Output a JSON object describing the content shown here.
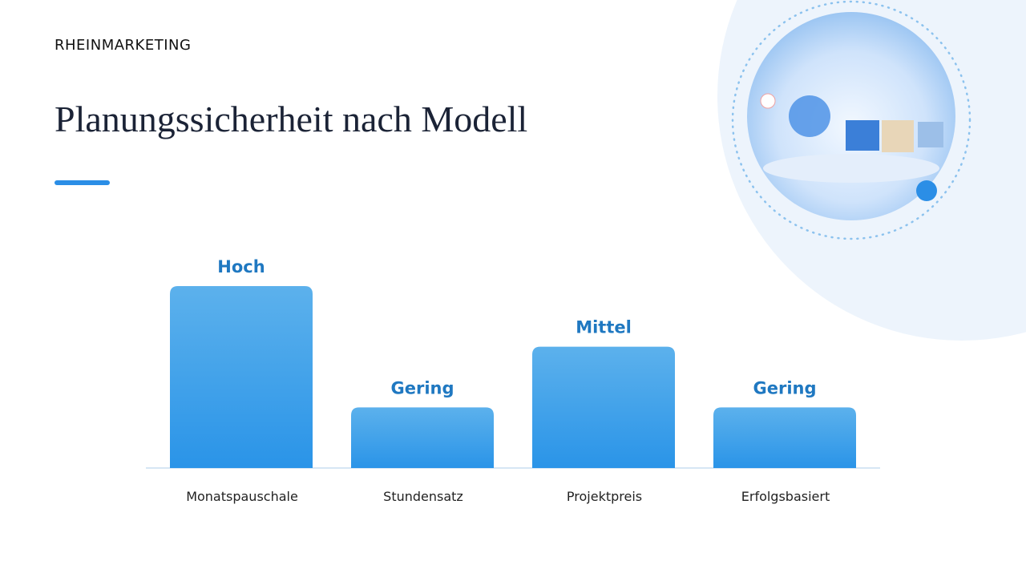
{
  "brand": "RHEINMARKETING",
  "chart_data": {
    "type": "bar",
    "title": "Planungssicherheit nach Modell",
    "categories": [
      "Monatspauschale",
      "Stundensatz",
      "Projektpreis",
      "Erfolgsbasiert"
    ],
    "values": [
      3,
      1,
      2,
      1
    ],
    "value_labels": [
      "Hoch",
      "Gering",
      "Mittel",
      "Gering"
    ],
    "color": "#3a9fea"
  }
}
